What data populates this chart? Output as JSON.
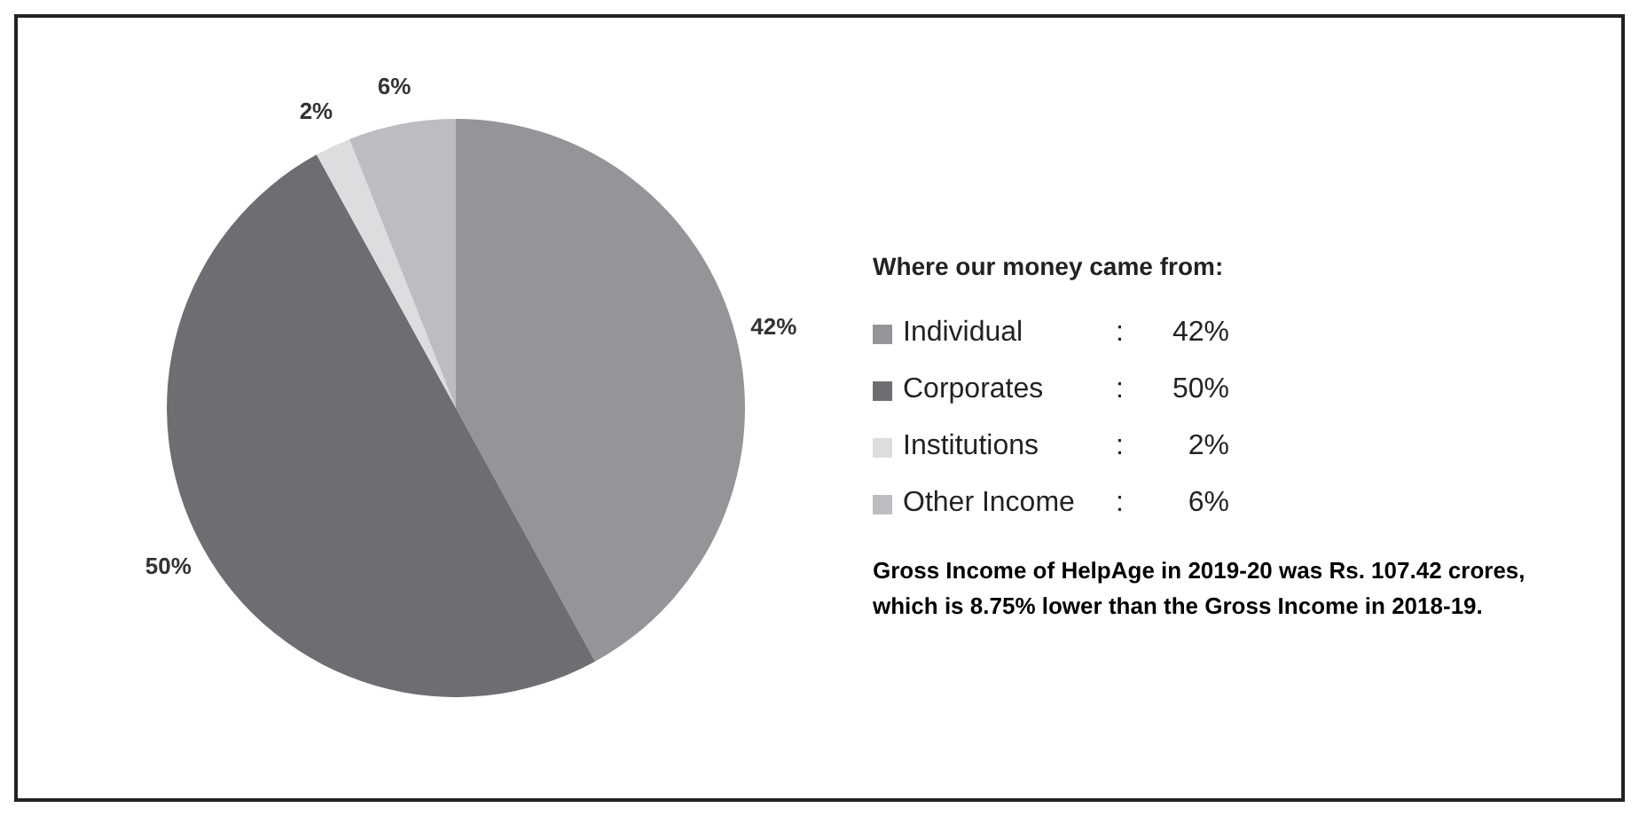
{
  "chart_data": {
    "type": "pie",
    "legend_title": "Where our money came from:",
    "categories": [
      "Individual",
      "Corporates",
      "Institutions",
      "Other Income"
    ],
    "values": [
      42,
      50,
      2,
      6
    ],
    "value_labels": [
      "42%",
      "50%",
      "2%",
      "6%"
    ],
    "colors": [
      "#939598",
      "#6d6e71",
      "#dcdddf",
      "#bcbdc0"
    ],
    "legend": "right",
    "annotations": [
      ":",
      ":",
      ":",
      ":",
      "Gross Income of HelpAge in 2019-20 was Rs. 107.42 crores, which is 8.75% lower than the Gross Income in 2018-19."
    ]
  }
}
